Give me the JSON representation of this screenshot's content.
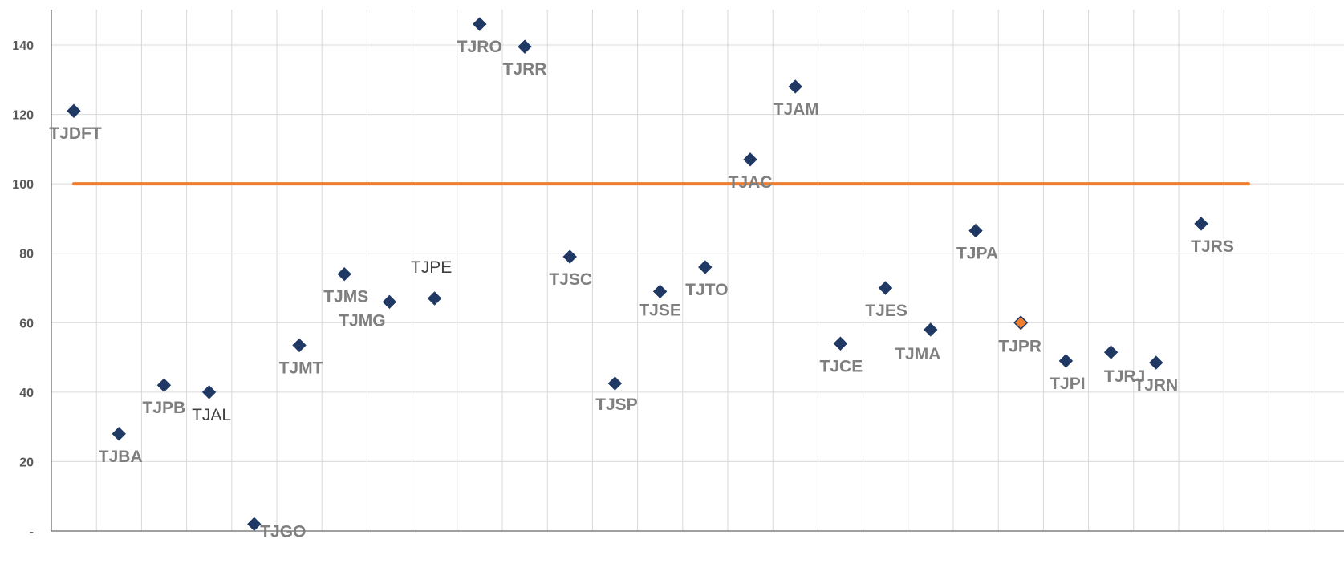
{
  "chart_data": {
    "type": "scatter",
    "title": "",
    "xlabel": "",
    "ylabel": "",
    "ylim": [
      0,
      150
    ],
    "yticks": [
      {
        "value": 0,
        "label": "-"
      },
      {
        "value": 20,
        "label": "20"
      },
      {
        "value": 40,
        "label": "40"
      },
      {
        "value": 60,
        "label": "60"
      },
      {
        "value": 80,
        "label": "80"
      },
      {
        "value": 100,
        "label": "100"
      },
      {
        "value": 120,
        "label": "120"
      },
      {
        "value": 140,
        "label": "140"
      }
    ],
    "grid": true,
    "reference_line": {
      "y": 100,
      "color": "#ed7d31"
    },
    "marker_color": "#1f3864",
    "highlight_color": "#ed7d31",
    "points": [
      {
        "label": "TJDFT",
        "x": 1,
        "y": 121
      },
      {
        "label": "TJBA",
        "x": 2,
        "y": 28
      },
      {
        "label": "TJPB",
        "x": 3,
        "y": 42
      },
      {
        "label": "TJAL",
        "x": 4,
        "y": 40
      },
      {
        "label": "TJGO",
        "x": 5,
        "y": 2
      },
      {
        "label": "TJMT",
        "x": 6,
        "y": 53.5
      },
      {
        "label": "TJMS",
        "x": 7,
        "y": 74
      },
      {
        "label": "TJMG",
        "x": 8,
        "y": 66
      },
      {
        "label": "TJPE",
        "x": 9,
        "y": 67
      },
      {
        "label": "TJRO",
        "x": 10,
        "y": 146
      },
      {
        "label": "TJRR",
        "x": 11,
        "y": 139.5
      },
      {
        "label": "TJSC",
        "x": 12,
        "y": 79
      },
      {
        "label": "TJSP",
        "x": 13,
        "y": 42.5
      },
      {
        "label": "TJSE",
        "x": 14,
        "y": 69
      },
      {
        "label": "TJTO",
        "x": 15,
        "y": 76
      },
      {
        "label": "TJAC",
        "x": 16,
        "y": 107
      },
      {
        "label": "TJAM",
        "x": 17,
        "y": 128
      },
      {
        "label": "TJCE",
        "x": 18,
        "y": 54
      },
      {
        "label": "TJES",
        "x": 19,
        "y": 70
      },
      {
        "label": "TJMA",
        "x": 20,
        "y": 58
      },
      {
        "label": "TJPA",
        "x": 21,
        "y": 86.5
      },
      {
        "label": "TJPR",
        "x": 22,
        "y": 60,
        "highlight": true
      },
      {
        "label": "TJPI",
        "x": 23,
        "y": 49
      },
      {
        "label": "TJRJ",
        "x": 24,
        "y": 51.5
      },
      {
        "label": "TJRN",
        "x": 25,
        "y": 48.5
      },
      {
        "label": "TJRS",
        "x": 26,
        "y": 88.5
      }
    ]
  }
}
